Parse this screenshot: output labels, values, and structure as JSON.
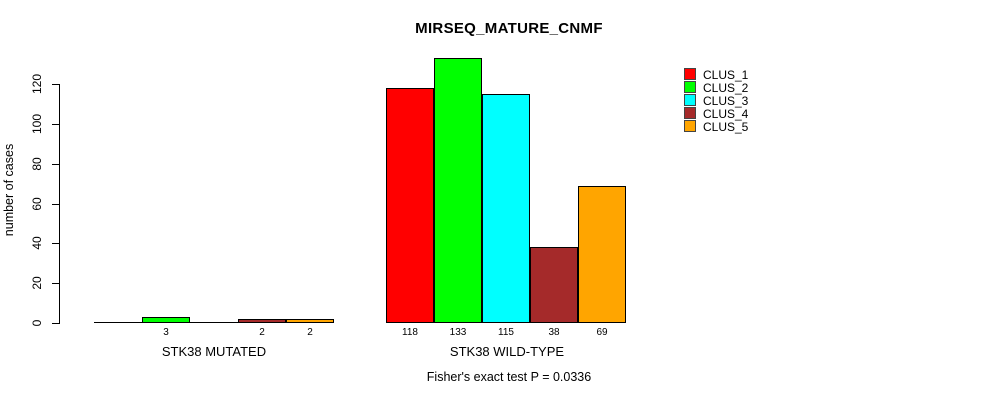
{
  "chart_data": {
    "type": "bar",
    "title": "MIRSEQ_MATURE_CNMF",
    "ylabel": "number of cases",
    "xlabel": "",
    "categories": [
      "STK38 MUTATED",
      "STK38 WILD-TYPE"
    ],
    "series": [
      {
        "name": "CLUS_1",
        "color": "#FF0000",
        "values": [
          0,
          118
        ]
      },
      {
        "name": "CLUS_2",
        "color": "#00FF00",
        "values": [
          3,
          133
        ]
      },
      {
        "name": "CLUS_3",
        "color": "#00FFFF",
        "values": [
          0,
          115
        ]
      },
      {
        "name": "CLUS_4",
        "color": "#A52A2A",
        "values": [
          2,
          38
        ]
      },
      {
        "name": "CLUS_5",
        "color": "#FFA500",
        "values": [
          2,
          69
        ]
      }
    ],
    "yticks": [
      0,
      20,
      40,
      60,
      80,
      100,
      120
    ],
    "ylim": [
      0,
      133
    ],
    "grid": false,
    "legend_position": "top-right",
    "hide_zero_bar_labels": true,
    "annotation": "Fisher's exact test P = 0.0336",
    "axis_color": "#000000",
    "background": "#FFFFFF"
  }
}
